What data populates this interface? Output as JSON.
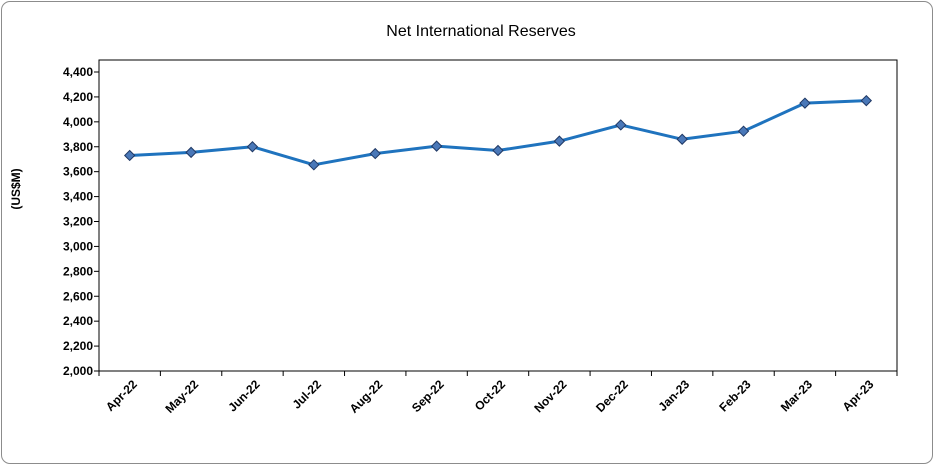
{
  "chart_data": {
    "type": "line",
    "title": "Net International Reserves",
    "ylabel": "(US$M)",
    "xlabel": "",
    "categories": [
      "Apr-22",
      "May-22",
      "Jun-22",
      "Jul-22",
      "Aug-22",
      "Sep-22",
      "Oct-22",
      "Nov-22",
      "Dec-22",
      "Jan-23",
      "Feb-23",
      "Mar-23",
      "Apr-23"
    ],
    "series": [
      {
        "values": [
          3730,
          3755,
          3800,
          3655,
          3745,
          3805,
          3770,
          3845,
          3975,
          3860,
          3925,
          4150,
          4170
        ]
      }
    ],
    "ylim": [
      2000,
      4400
    ],
    "yticks": [
      "2,000",
      "2,200",
      "2,400",
      "2,600",
      "2,800",
      "3,000",
      "3,200",
      "3,400",
      "3,600",
      "3,800",
      "4,000",
      "4,200",
      "4,400"
    ],
    "ytick_values": [
      2000,
      2200,
      2400,
      2600,
      2800,
      3000,
      3200,
      3400,
      3600,
      3800,
      4000,
      4200,
      4400
    ],
    "grid": false,
    "legend": "none",
    "line_color": "#1f73be",
    "marker_color": "#4a78b8",
    "marker": "diamond"
  }
}
